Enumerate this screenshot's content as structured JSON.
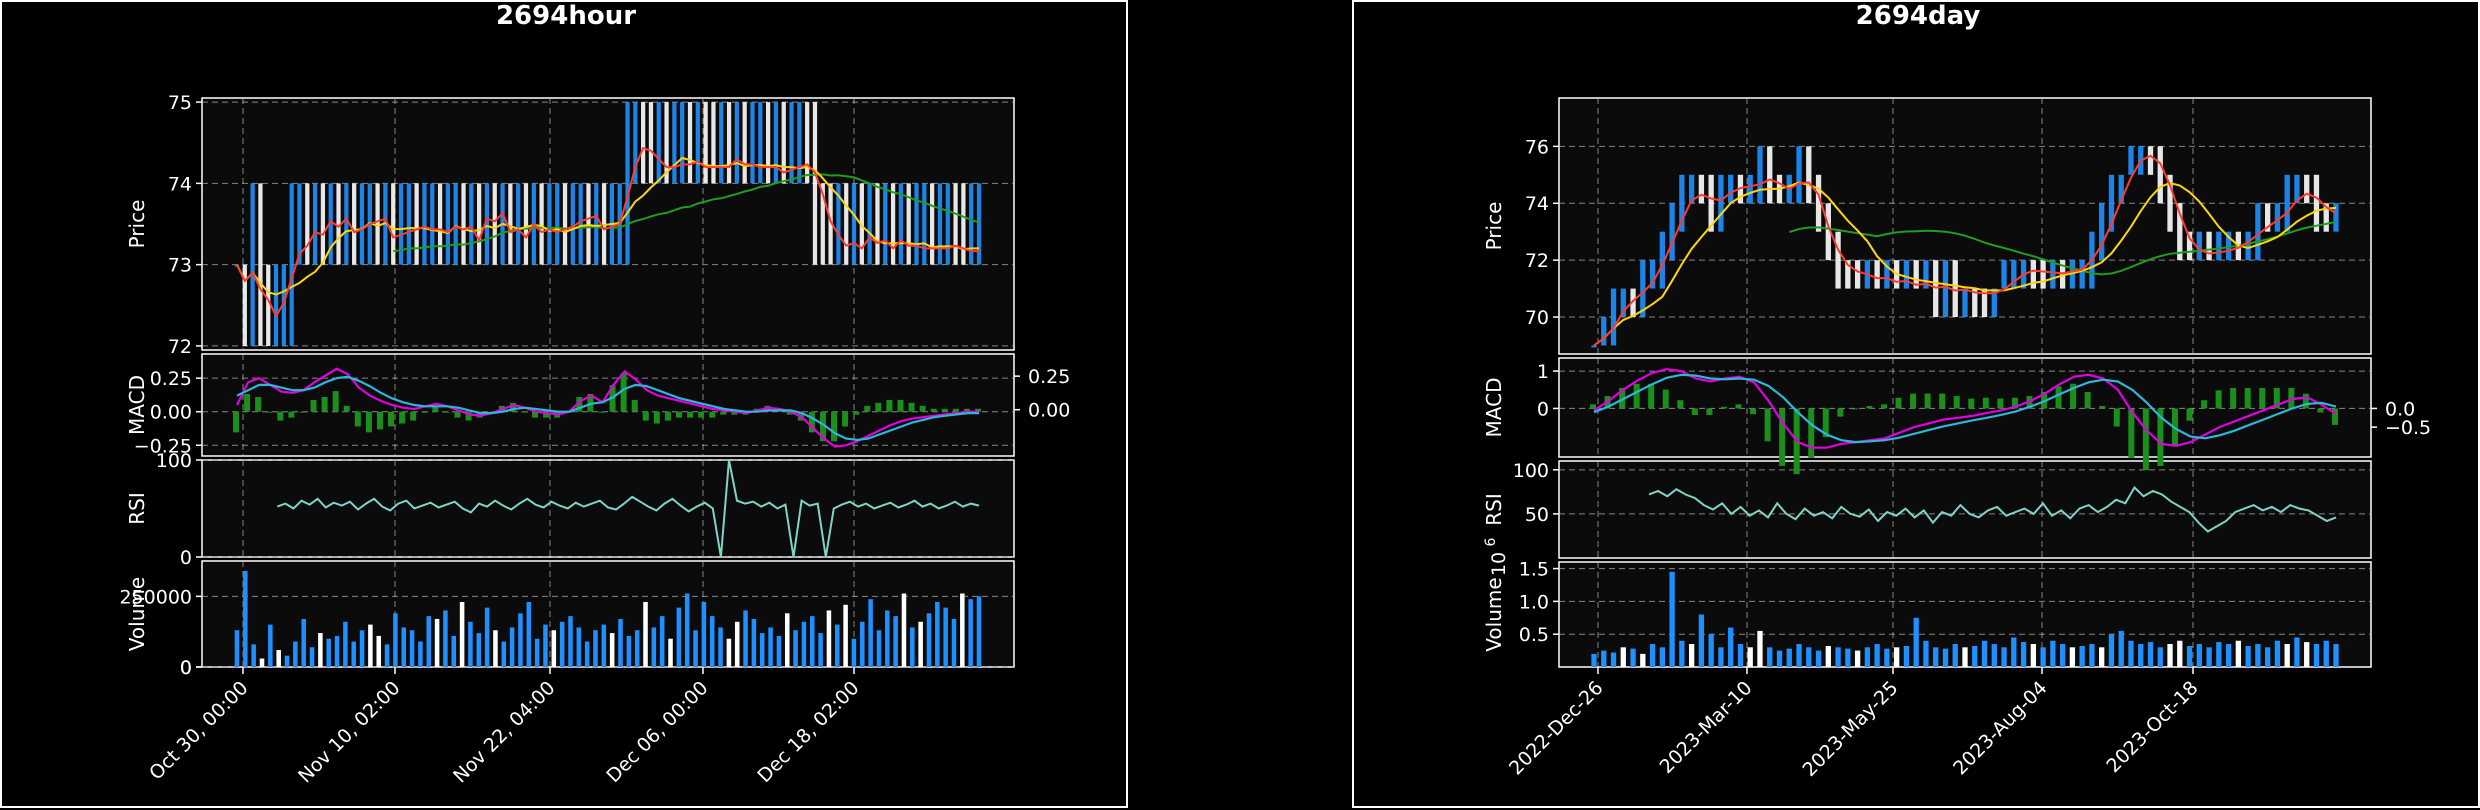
{
  "figures": [
    {
      "id": "hour",
      "title": "2694hour",
      "chart_data": {
        "type": "candlestick",
        "price": {
          "ylabel": "Price",
          "ylim": [
            71.95,
            75.05
          ],
          "yticks": [
            72,
            73,
            74,
            75
          ],
          "closes": [
            73,
            72.6,
            73.1,
            72.4,
            72.2,
            72.5,
            72.9,
            73.1,
            73.4,
            73.2,
            73.6,
            73.3,
            73.7,
            73.4,
            73.6,
            73.2,
            73.5,
            73.8,
            73.3,
            73.6,
            73.1,
            73.4,
            73.7,
            73.2,
            73.5,
            73.6,
            73.2,
            73.4,
            73.8,
            73.1,
            73.5,
            73.3,
            73.9,
            73.4,
            73.6,
            73.2,
            73.5,
            73.3,
            73.7,
            73.2,
            73.4,
            73.6,
            73.3,
            73.5,
            73.8,
            73.4,
            73.6,
            73.3,
            73.5,
            73.7,
            74.3,
            74.6,
            74.4,
            74.2,
            74.3,
            74.1,
            74.2,
            74.4,
            74.1,
            74.3,
            74.2,
            74.1,
            74.3,
            74.2,
            74.4,
            74.1,
            74.2,
            74.3,
            74.1,
            74.2,
            74.1,
            74.2,
            74.3,
            74.2,
            73.9,
            73.5,
            73.2,
            73.4,
            73.1,
            73.3,
            73.2,
            73.5,
            73.1,
            73.3,
            73.2,
            73.4,
            73.1,
            73.2,
            73.3,
            73.1,
            73.2,
            73.3,
            73.2,
            73.1,
            73.2,
            73.2
          ],
          "ma_short_color": "#ff3b30",
          "ma_mid_color": "#ffd60a",
          "ma_long_color": "#1f9d1f"
        },
        "macd": {
          "ylabel": "MACD",
          "ylim": [
            -0.33,
            0.43
          ],
          "yticks_left": [
            0.25,
            0.0,
            -0.25
          ],
          "yticks_left_labels": [
            "0.25",
            "0.00",
            "−0.25"
          ],
          "yticks_right": [
            0.25,
            0.0
          ],
          "yticks_right_labels": [
            "0.25",
            "0.00"
          ],
          "macd": [
            0.05,
            0.22,
            0.25,
            0.2,
            0.15,
            0.14,
            0.16,
            0.22,
            0.27,
            0.32,
            0.28,
            0.18,
            0.12,
            0.08,
            0.05,
            0.03,
            0.02,
            0.04,
            0.06,
            0.04,
            0.01,
            -0.02,
            -0.03,
            -0.01,
            0.02,
            0.05,
            0.03,
            0.0,
            -0.01,
            -0.02,
            0.0,
            0.08,
            0.12,
            0.07,
            0.2,
            0.3,
            0.24,
            0.16,
            0.12,
            0.1,
            0.08,
            0.06,
            0.04,
            0.02,
            0.01,
            0.0,
            -0.01,
            0.01,
            0.03,
            0.02,
            0.0,
            -0.04,
            -0.12,
            -0.2,
            -0.26,
            -0.25,
            -0.22,
            -0.18,
            -0.14,
            -0.1,
            -0.07,
            -0.05,
            -0.04,
            -0.03,
            -0.02,
            -0.01,
            0.0,
            0.0
          ],
          "signal": [
            0.12,
            0.16,
            0.2,
            0.2,
            0.18,
            0.16,
            0.16,
            0.18,
            0.22,
            0.25,
            0.26,
            0.23,
            0.19,
            0.14,
            0.1,
            0.07,
            0.05,
            0.04,
            0.04,
            0.04,
            0.03,
            0.01,
            -0.01,
            -0.01,
            0.0,
            0.02,
            0.03,
            0.02,
            0.01,
            0.0,
            0.0,
            0.03,
            0.06,
            0.07,
            0.11,
            0.17,
            0.2,
            0.19,
            0.16,
            0.13,
            0.1,
            0.08,
            0.06,
            0.04,
            0.02,
            0.01,
            0.0,
            0.0,
            0.01,
            0.01,
            0.01,
            -0.01,
            -0.05,
            -0.1,
            -0.16,
            -0.2,
            -0.21,
            -0.2,
            -0.17,
            -0.14,
            -0.11,
            -0.08,
            -0.06,
            -0.04,
            -0.03,
            -0.02,
            -0.01,
            -0.01
          ],
          "macd_color": "#e000e0",
          "signal_color": "#2fb5d8",
          "hist_color": "#1a8f1a"
        },
        "rsi": {
          "ylabel": "RSI",
          "ylim": [
            0,
            100
          ],
          "yticks": [
            0,
            100
          ],
          "values": [
            52,
            55,
            50,
            58,
            54,
            60,
            51,
            56,
            53,
            57,
            49,
            55,
            60,
            52,
            48,
            55,
            58,
            50,
            53,
            56,
            51,
            54,
            57,
            50,
            46,
            55,
            52,
            58,
            53,
            49,
            55,
            60,
            54,
            51,
            57,
            53,
            50,
            56,
            52,
            55,
            58,
            51,
            49,
            55,
            62,
            57,
            52,
            48,
            55,
            60,
            53,
            47,
            52,
            56,
            50,
            0,
            100,
            58,
            55,
            57,
            52,
            56,
            50,
            54,
            0,
            58,
            53,
            55,
            0,
            50,
            54,
            57,
            52,
            55,
            50,
            53,
            56,
            51,
            54,
            58,
            52,
            55,
            50,
            53,
            57,
            52,
            55,
            53
          ],
          "line_color": "#7fd3c7",
          "start_index": 5
        },
        "volume": {
          "ylabel": "Volume",
          "ylim": [
            0,
            375000
          ],
          "yticks": [
            0,
            250000
          ],
          "ytick_labels": [
            "0",
            "250000"
          ],
          "values": [
            130000,
            340000,
            80000,
            30000,
            150000,
            60000,
            40000,
            90000,
            170000,
            70000,
            120000,
            100000,
            110000,
            160000,
            90000,
            130000,
            150000,
            110000,
            80000,
            190000,
            140000,
            130000,
            90000,
            180000,
            170000,
            200000,
            110000,
            230000,
            160000,
            120000,
            210000,
            130000,
            90000,
            140000,
            190000,
            230000,
            100000,
            150000,
            130000,
            160000,
            180000,
            140000,
            90000,
            130000,
            150000,
            120000,
            170000,
            110000,
            130000,
            230000,
            140000,
            180000,
            100000,
            210000,
            260000,
            130000,
            230000,
            180000,
            140000,
            100000,
            160000,
            200000,
            170000,
            120000,
            140000,
            110000,
            190000,
            130000,
            160000,
            180000,
            120000,
            200000,
            150000,
            220000,
            100000,
            160000,
            240000,
            130000,
            200000,
            180000,
            260000,
            140000,
            160000,
            190000,
            230000,
            210000,
            170000,
            260000,
            240000,
            250000
          ],
          "up_color": "#1e90ff",
          "down_color": "#ffffff"
        },
        "x_tick_labels": [
          "Oct 30, 00:00",
          "Nov 10, 02:00",
          "Nov 22, 04:00",
          "Dec 06, 00:00",
          "Dec 18, 02:00"
        ],
        "grid": true
      }
    },
    {
      "id": "day",
      "title": "2694day",
      "chart_data": {
        "type": "candlestick",
        "price": {
          "ylabel": "Price",
          "ylim": [
            68.7,
            77.7
          ],
          "yticks": [
            70,
            72,
            74,
            76
          ],
          "closes": [
            69,
            69.5,
            70.3,
            70.8,
            70.6,
            71.2,
            71.8,
            72.5,
            73.5,
            74.2,
            74.6,
            74.1,
            73.8,
            74.4,
            74.9,
            74.3,
            74.6,
            75.1,
            74.8,
            74.2,
            74.5,
            75.4,
            74.3,
            73.2,
            72.1,
            71.8,
            71.6,
            71.4,
            71.5,
            71.2,
            71.4,
            71.1,
            71.3,
            71.0,
            71.2,
            70.9,
            71.1,
            70.8,
            71.0,
            70.8,
            70.7,
            71.0,
            71.2,
            71.5,
            71.8,
            71.6,
            71.4,
            71.7,
            71.5,
            71.6,
            71.9,
            72.5,
            73.2,
            74.1,
            75.0,
            75.6,
            75.9,
            75.5,
            74.8,
            73.6,
            72.5,
            72.2,
            72.4,
            72.1,
            72.3,
            72.6,
            72.4,
            72.9,
            73.4,
            73.2,
            73.6,
            74.2,
            74.5,
            74.3,
            73.8,
            73.5,
            73.6
          ],
          "ma_short_color": "#ff3b30",
          "ma_mid_color": "#ffd60a",
          "ma_long_color": "#1f9d1f"
        },
        "macd": {
          "ylabel": "MACD",
          "ylim": [
            -1.3,
            1.35
          ],
          "yticks_left": [
            1,
            0
          ],
          "yticks_left_labels": [
            "1",
            "0"
          ],
          "yticks_right": [
            0.0,
            -0.5
          ],
          "yticks_right_labels": [
            "0.0",
            "−0.5"
          ],
          "macd": [
            -0.05,
            0.2,
            0.5,
            0.75,
            0.95,
            1.05,
            1.0,
            0.8,
            0.72,
            0.8,
            0.85,
            0.7,
            0.2,
            -0.4,
            -0.9,
            -1.05,
            -1.05,
            -0.95,
            -0.9,
            -0.85,
            -0.8,
            -0.65,
            -0.5,
            -0.4,
            -0.3,
            -0.25,
            -0.2,
            -0.12,
            -0.05,
            0.05,
            0.2,
            0.4,
            0.65,
            0.85,
            0.9,
            0.8,
            0.5,
            -0.1,
            -0.6,
            -0.95,
            -1.0,
            -0.9,
            -0.7,
            -0.5,
            -0.35,
            -0.2,
            -0.05,
            0.1,
            0.25,
            0.3,
            0.1,
            -0.15
          ],
          "signal": [
            -0.1,
            0.05,
            0.25,
            0.45,
            0.65,
            0.82,
            0.9,
            0.88,
            0.8,
            0.78,
            0.8,
            0.77,
            0.6,
            0.3,
            -0.1,
            -0.45,
            -0.7,
            -0.85,
            -0.9,
            -0.88,
            -0.85,
            -0.78,
            -0.68,
            -0.58,
            -0.48,
            -0.4,
            -0.32,
            -0.25,
            -0.17,
            -0.08,
            0.05,
            0.2,
            0.38,
            0.55,
            0.7,
            0.77,
            0.72,
            0.5,
            0.15,
            -0.25,
            -0.55,
            -0.75,
            -0.8,
            -0.72,
            -0.6,
            -0.45,
            -0.3,
            -0.15,
            0.0,
            0.12,
            0.15,
            0.05
          ],
          "macd_color": "#e000e0",
          "signal_color": "#2fb5d8",
          "hist_color": "#1a8f1a"
        },
        "rsi": {
          "ylabel": "RSI",
          "ylim": [
            0,
            110
          ],
          "yticks": [
            50,
            100
          ],
          "values": [
            72,
            76,
            70,
            78,
            72,
            68,
            60,
            55,
            62,
            50,
            58,
            48,
            54,
            46,
            62,
            50,
            44,
            56,
            48,
            52,
            45,
            58,
            50,
            47,
            55,
            42,
            52,
            48,
            56,
            46,
            54,
            40,
            52,
            48,
            60,
            50,
            46,
            54,
            58,
            48,
            52,
            56,
            50,
            62,
            48,
            54,
            45,
            56,
            60,
            52,
            58,
            66,
            62,
            80,
            70,
            76,
            72,
            64,
            58,
            52,
            40,
            30,
            36,
            42,
            52,
            56,
            60,
            54,
            58,
            52,
            60,
            56,
            54,
            48,
            42,
            46
          ],
          "line_color": "#7fd3c7",
          "start_index": 6
        },
        "volume": {
          "ylabel": "Volume",
          "exponent_label": "10",
          "exponent_power": "6",
          "ylim": [
            0,
            1.6
          ],
          "yticks": [
            0.5,
            1.0,
            1.5
          ],
          "ytick_labels": [
            "0.5",
            "1.0",
            "1.5"
          ],
          "values": [
            0.2,
            0.25,
            0.22,
            0.3,
            0.28,
            0.2,
            0.35,
            0.3,
            1.45,
            0.4,
            0.35,
            0.8,
            0.5,
            0.3,
            0.6,
            0.35,
            0.3,
            0.55,
            0.3,
            0.25,
            0.28,
            0.35,
            0.3,
            0.25,
            0.32,
            0.3,
            0.28,
            0.25,
            0.3,
            0.35,
            0.28,
            0.3,
            0.32,
            0.75,
            0.4,
            0.3,
            0.28,
            0.35,
            0.3,
            0.32,
            0.4,
            0.35,
            0.3,
            0.45,
            0.38,
            0.35,
            0.3,
            0.4,
            0.35,
            0.3,
            0.32,
            0.35,
            0.3,
            0.5,
            0.55,
            0.4,
            0.35,
            0.38,
            0.3,
            0.35,
            0.4,
            0.32,
            0.35,
            0.3,
            0.38,
            0.35,
            0.4,
            0.32,
            0.35,
            0.3,
            0.4,
            0.35,
            0.45,
            0.38,
            0.35,
            0.4,
            0.35
          ],
          "up_color": "#1e90ff",
          "down_color": "#ffffff"
        },
        "x_tick_labels": [
          "2022-Dec-26",
          "2023-Mar-10",
          "2023-May-25",
          "2023-Aug-04",
          "2023-Oct-18"
        ],
        "grid": true
      }
    }
  ]
}
